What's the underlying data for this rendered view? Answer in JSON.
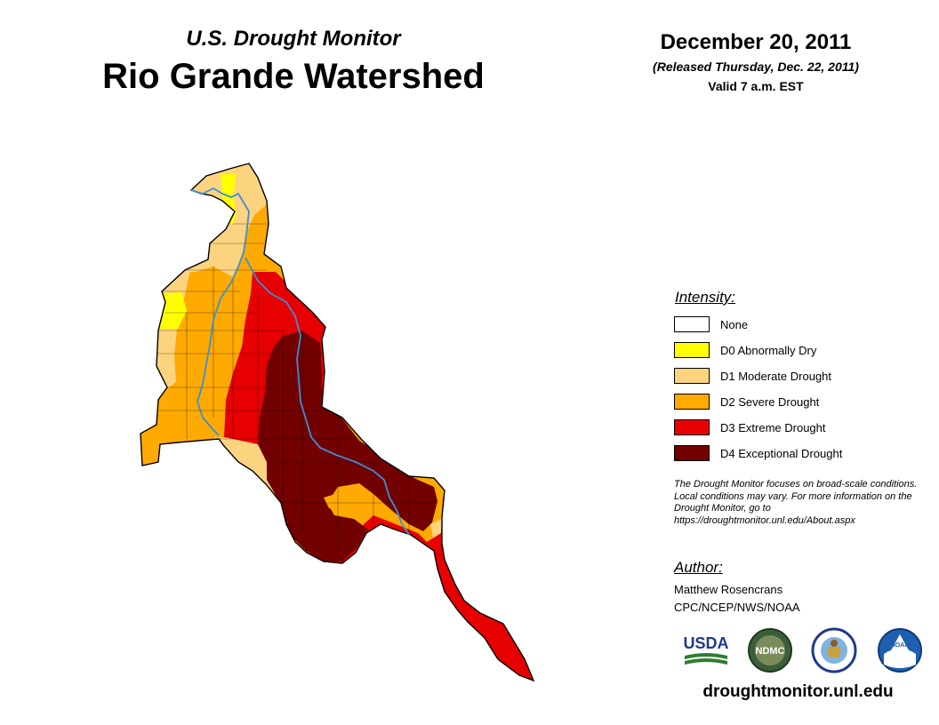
{
  "header": {
    "title_top": "U.S. Drought Monitor",
    "title_main": "Rio Grande Watershed",
    "date": "December 20, 2011",
    "released": "(Released Thursday, Dec. 22, 2011)",
    "valid": "Valid 7 a.m. EST"
  },
  "legend": {
    "title": "Intensity:",
    "items": [
      {
        "label": "None",
        "color": "#ffffff"
      },
      {
        "label": "D0 Abnormally Dry",
        "color": "#ffff00"
      },
      {
        "label": "D1 Moderate Drought",
        "color": "#fcd37f"
      },
      {
        "label": "D2 Severe Drought",
        "color": "#ffaa00"
      },
      {
        "label": "D3 Extreme Drought",
        "color": "#e60000"
      },
      {
        "label": "D4 Exceptional Drought",
        "color": "#730000"
      }
    ]
  },
  "note": "The Drought Monitor focuses on broad-scale conditions. Local conditions may vary. For more information on the Drought Monitor, go to https://droughtmonitor.unl.edu/About.aspx",
  "author": {
    "title": "Author:",
    "name": "Matthew Rosencrans",
    "org": "CPC/NCEP/NWS/NOAA"
  },
  "logos": {
    "usda": "USDA",
    "ndmc": "NDMC",
    "noaa": "NOAA"
  },
  "site": "droughtmonitor.unl.edu",
  "colors": {
    "river": "#3a8fd8",
    "outline": "#000000"
  }
}
